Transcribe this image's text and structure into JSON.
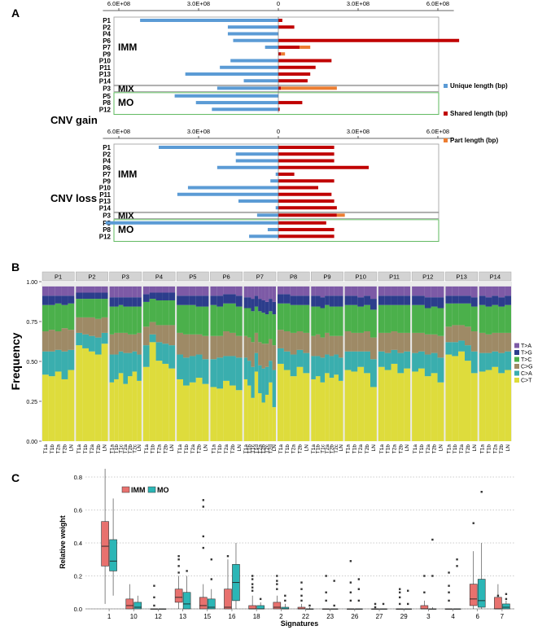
{
  "colors": {
    "unique": "#5b9bd5",
    "shared": "#c00000",
    "part": "#ed7d31",
    "imm_box": "#e8716e",
    "mo_box": "#2bb6b6",
    "mut": {
      "C>T": "#dedc3c",
      "C>A": "#3aaeae",
      "C>G": "#9e8a66",
      "T>C": "#4bb04b",
      "T>G": "#2c3d8c",
      "T>A": "#7d5aa6"
    }
  },
  "panels": {
    "a": "A",
    "b": "B",
    "c": "C"
  },
  "chart_data": [
    {
      "type": "bar",
      "id": "cnv-gain",
      "title": "CNV gain",
      "axis_ticks": [
        "6.0E+08",
        "3.0E+08",
        "0",
        "3.0E+08",
        "6.0E+08"
      ],
      "xlim": [
        -650000000.0,
        650000000.0
      ],
      "groups": {
        "imm": "IMM",
        "mix": "MIX",
        "mo": "MO"
      },
      "legend": [
        "Unique length (bp)",
        "Shared length (bp)",
        "Part length (bp)"
      ],
      "patients": [
        "P1",
        "P2",
        "P4",
        "P6",
        "P7",
        "P9",
        "P10",
        "P11",
        "P13",
        "P14",
        "P3",
        "P5",
        "P8",
        "P12"
      ],
      "unique": [
        520000000.0,
        190000000.0,
        190000000.0,
        170000000.0,
        50000000.0,
        0,
        180000000.0,
        220000000.0,
        350000000.0,
        130000000.0,
        230000000.0,
        390000000.0,
        310000000.0,
        250000000.0
      ],
      "shared": [
        15000000.0,
        60000000.0,
        0,
        680000000.0,
        80000000.0,
        10000000.0,
        200000000.0,
        140000000.0,
        120000000.0,
        110000000.0,
        10000000.0,
        0,
        90000000.0,
        5000000.0
      ],
      "part": [
        0,
        0,
        0,
        0,
        40000000.0,
        15000000.0,
        0,
        0,
        0,
        0,
        210000000.0,
        0,
        0,
        0
      ]
    },
    {
      "type": "bar",
      "id": "cnv-loss",
      "title": "CNV loss",
      "axis_ticks": [
        "6.0E+08",
        "3.0E+08",
        "0",
        "3.0E+08",
        "6.0E+08"
      ],
      "xlim": [
        -650000000.0,
        650000000.0
      ],
      "groups": {
        "imm": "IMM",
        "mix": "MIX",
        "mo": "MO"
      },
      "patients": [
        "P1",
        "P2",
        "P4",
        "P6",
        "P7",
        "P9",
        "P10",
        "P11",
        "P13",
        "P14",
        "P3",
        "P5",
        "P8",
        "P12"
      ],
      "unique": [
        450000000.0,
        160000000.0,
        160000000.0,
        230000000.0,
        10000000.0,
        30000000.0,
        340000000.0,
        380000000.0,
        150000000.0,
        10000000.0,
        80000000.0,
        650000000.0,
        40000000.0,
        110000000.0
      ],
      "shared": [
        210000000.0,
        210000000.0,
        210000000.0,
        340000000.0,
        60000000.0,
        210000000.0,
        150000000.0,
        200000000.0,
        210000000.0,
        220000000.0,
        220000000.0,
        180000000.0,
        210000000.0,
        210000000.0
      ],
      "part": [
        0,
        0,
        0,
        0,
        0,
        0,
        0,
        0,
        0,
        0,
        30000000.0,
        0,
        0,
        0
      ]
    },
    {
      "type": "bar",
      "id": "mutation-spectrum",
      "ylabel": "Frequency",
      "yticks": [
        "0.00",
        "0.25",
        "0.50",
        "0.75",
        "1.00"
      ],
      "legend": [
        "T>A",
        "T>G",
        "T>C",
        "C>G",
        "C>A",
        "C>T"
      ],
      "facets": [
        "P1",
        "P2",
        "P3",
        "P4",
        "P5",
        "P6",
        "P7",
        "P8",
        "P9",
        "P10",
        "P11",
        "P12",
        "P13",
        "P14"
      ],
      "samples": [
        [
          "T1a",
          "T1b",
          "T2a",
          "T2b",
          "LN"
        ],
        [
          "T1a",
          "T1b",
          "T2a",
          "T2b",
          "LN"
        ],
        [
          "T1a",
          "T1b",
          "T1c",
          "T2a",
          "T2b",
          "T2c",
          "LN"
        ],
        [
          "T1a",
          "T1b",
          "T2a",
          "T2b",
          "LN"
        ],
        [
          "T1a",
          "T1b",
          "T2a",
          "T2b",
          "LN"
        ],
        [
          "T1a",
          "T1b",
          "T2a",
          "T2b",
          "LN"
        ],
        [
          "T1a",
          "T1b",
          "T1c",
          "T1d",
          "T2a",
          "T2b",
          "T2c",
          "T2d",
          "LN"
        ],
        [
          "T1a",
          "T1b",
          "T2a",
          "T2b",
          "LN"
        ],
        [
          "T1a",
          "T1b",
          "T1c",
          "T2a",
          "T2b",
          "T2c",
          "LN"
        ],
        [
          "T1a",
          "T1b",
          "T2a",
          "T2b",
          "LN"
        ],
        [
          "T1a",
          "T1b",
          "T2a",
          "T2b",
          "LN"
        ],
        [
          "T1a",
          "T1b",
          "T2a",
          "T2b",
          "LN"
        ],
        [
          "T1a",
          "T1b",
          "T2a",
          "T2b",
          "LN"
        ],
        [
          "T1a",
          "T1b",
          "T2a",
          "T2b",
          "LN"
        ]
      ],
      "ct": [
        [
          0.43,
          0.42,
          0.45,
          0.4,
          0.46
        ],
        [
          0.62,
          0.6,
          0.58,
          0.56,
          0.63
        ],
        [
          0.38,
          0.4,
          0.44,
          0.37,
          0.42,
          0.45,
          0.39
        ],
        [
          0.48,
          0.64,
          0.52,
          0.5,
          0.47
        ],
        [
          0.4,
          0.36,
          0.38,
          0.41,
          0.37
        ],
        [
          0.35,
          0.34,
          0.39,
          0.36,
          0.33
        ],
        [
          0.4,
          0.36,
          0.28,
          0.45,
          0.31,
          0.25,
          0.3,
          0.38,
          0.22
        ],
        [
          0.5,
          0.46,
          0.42,
          0.48,
          0.44
        ],
        [
          0.4,
          0.42,
          0.38,
          0.44,
          0.41,
          0.43,
          0.39
        ],
        [
          0.46,
          0.45,
          0.48,
          0.44,
          0.35
        ],
        [
          0.48,
          0.46,
          0.5,
          0.44,
          0.47
        ],
        [
          0.45,
          0.47,
          0.42,
          0.44,
          0.38
        ],
        [
          0.56,
          0.55,
          0.58,
          0.52,
          0.44
        ],
        [
          0.45,
          0.46,
          0.48,
          0.44,
          0.46
        ]
      ],
      "ca": [
        [
          0.15,
          0.16,
          0.14,
          0.18,
          0.13
        ],
        [
          0.08,
          0.09,
          0.1,
          0.11,
          0.07
        ],
        [
          0.18,
          0.16,
          0.14,
          0.2,
          0.15,
          0.13,
          0.17
        ],
        [
          0.14,
          0.05,
          0.12,
          0.13,
          0.15
        ],
        [
          0.16,
          0.18,
          0.17,
          0.15,
          0.16
        ],
        [
          0.18,
          0.2,
          0.16,
          0.19,
          0.21
        ],
        [
          0.14,
          0.16,
          0.2,
          0.12,
          0.18,
          0.22,
          0.18,
          0.14,
          0.24
        ],
        [
          0.1,
          0.12,
          0.14,
          0.11,
          0.13
        ],
        [
          0.15,
          0.13,
          0.16,
          0.12,
          0.14,
          0.13,
          0.15
        ],
        [
          0.12,
          0.13,
          0.1,
          0.14,
          0.18
        ],
        [
          0.1,
          0.11,
          0.09,
          0.13,
          0.11
        ],
        [
          0.12,
          0.11,
          0.14,
          0.13,
          0.16
        ],
        [
          0.08,
          0.09,
          0.07,
          0.1,
          0.14
        ],
        [
          0.12,
          0.11,
          0.1,
          0.13,
          0.12
        ]
      ],
      "cg": [
        [
          0.13,
          0.14,
          0.12,
          0.15,
          0.13
        ],
        [
          0.1,
          0.11,
          0.12,
          0.12,
          0.1
        ],
        [
          0.13,
          0.14,
          0.12,
          0.13,
          0.12,
          0.11,
          0.14
        ],
        [
          0.12,
          0.08,
          0.11,
          0.12,
          0.13
        ],
        [
          0.14,
          0.15,
          0.14,
          0.13,
          0.15
        ],
        [
          0.15,
          0.14,
          0.16,
          0.15,
          0.14
        ],
        [
          0.14,
          0.15,
          0.16,
          0.13,
          0.15,
          0.16,
          0.15,
          0.14,
          0.16
        ],
        [
          0.12,
          0.13,
          0.14,
          0.12,
          0.13
        ],
        [
          0.13,
          0.14,
          0.13,
          0.14,
          0.13,
          0.12,
          0.14
        ],
        [
          0.13,
          0.12,
          0.12,
          0.13,
          0.14
        ],
        [
          0.12,
          0.13,
          0.12,
          0.13,
          0.12
        ],
        [
          0.13,
          0.12,
          0.13,
          0.12,
          0.14
        ],
        [
          0.1,
          0.11,
          0.1,
          0.12,
          0.13
        ],
        [
          0.13,
          0.12,
          0.12,
          0.13,
          0.12
        ]
      ],
      "tc": [
        [
          0.17,
          0.16,
          0.18,
          0.15,
          0.17
        ],
        [
          0.12,
          0.12,
          0.12,
          0.13,
          0.12
        ],
        [
          0.18,
          0.17,
          0.18,
          0.17,
          0.18,
          0.18,
          0.17
        ],
        [
          0.16,
          0.15,
          0.16,
          0.16,
          0.16
        ],
        [
          0.18,
          0.19,
          0.19,
          0.18,
          0.19
        ],
        [
          0.2,
          0.19,
          0.18,
          0.19,
          0.19
        ],
        [
          0.18,
          0.19,
          0.2,
          0.17,
          0.2,
          0.2,
          0.19,
          0.18,
          0.2
        ],
        [
          0.17,
          0.18,
          0.18,
          0.17,
          0.18
        ],
        [
          0.19,
          0.18,
          0.19,
          0.18,
          0.19,
          0.19,
          0.19
        ],
        [
          0.17,
          0.18,
          0.17,
          0.17,
          0.18
        ],
        [
          0.18,
          0.18,
          0.17,
          0.18,
          0.18
        ],
        [
          0.18,
          0.18,
          0.17,
          0.18,
          0.18
        ],
        [
          0.15,
          0.14,
          0.14,
          0.15,
          0.16
        ],
        [
          0.18,
          0.18,
          0.18,
          0.17,
          0.18
        ]
      ],
      "tg": [
        [
          0.06,
          0.06,
          0.05,
          0.06,
          0.05
        ],
        [
          0.04,
          0.04,
          0.04,
          0.04,
          0.04
        ],
        [
          0.06,
          0.06,
          0.05,
          0.06,
          0.06,
          0.06,
          0.06
        ],
        [
          0.05,
          0.04,
          0.05,
          0.05,
          0.05
        ],
        [
          0.06,
          0.06,
          0.06,
          0.07,
          0.07
        ],
        [
          0.06,
          0.07,
          0.06,
          0.06,
          0.07
        ],
        [
          0.07,
          0.07,
          0.08,
          0.07,
          0.08,
          0.08,
          0.08,
          0.08,
          0.08
        ],
        [
          0.06,
          0.06,
          0.06,
          0.06,
          0.06
        ],
        [
          0.07,
          0.07,
          0.07,
          0.06,
          0.07,
          0.07,
          0.07
        ],
        [
          0.06,
          0.06,
          0.06,
          0.06,
          0.07
        ],
        [
          0.06,
          0.06,
          0.06,
          0.06,
          0.06
        ],
        [
          0.06,
          0.06,
          0.07,
          0.06,
          0.07
        ],
        [
          0.05,
          0.05,
          0.05,
          0.05,
          0.06
        ],
        [
          0.06,
          0.06,
          0.06,
          0.06,
          0.06
        ]
      ]
    },
    {
      "type": "box",
      "id": "signatures",
      "ylabel": "Relative weight",
      "xlabel": "Signatures",
      "legend": [
        "IMM",
        "MO"
      ],
      "yticks": [
        "0.0",
        "0.2",
        "0.4",
        "0.6",
        "0.8"
      ],
      "ylim": [
        0,
        0.85
      ],
      "categories": [
        "1",
        "10",
        "12",
        "13",
        "15",
        "16",
        "18",
        "2",
        "22",
        "23",
        "26",
        "27",
        "29",
        "3",
        "4",
        "6",
        "7"
      ],
      "imm": [
        [
          0.03,
          0.26,
          0.38,
          0.53,
          0.85
        ],
        [
          0,
          0,
          0.02,
          0.06,
          0.15
        ],
        [
          0,
          0,
          0,
          0,
          0
        ],
        [
          0,
          0.04,
          0.07,
          0.12,
          0.2
        ],
        [
          0,
          0,
          0.02,
          0.07,
          0.15
        ],
        [
          0,
          0,
          0.01,
          0.12,
          0.3
        ],
        [
          0,
          0,
          0,
          0.02,
          0.08
        ],
        [
          0,
          0,
          0.01,
          0.04,
          0.08
        ],
        [
          0,
          0,
          0,
          0.01,
          0.03
        ],
        [
          0,
          0,
          0,
          0,
          0
        ],
        [
          0,
          0,
          0,
          0,
          0
        ],
        [
          0,
          0,
          0,
          0,
          0
        ],
        [
          0,
          0,
          0,
          0,
          0
        ],
        [
          0,
          0,
          0,
          0.02,
          0.05
        ],
        [
          0,
          0,
          0,
          0,
          0
        ],
        [
          0,
          0.02,
          0.06,
          0.15,
          0.35
        ],
        [
          0,
          0,
          0,
          0.07,
          0.15
        ]
      ],
      "mo": [
        [
          0.08,
          0.23,
          0.29,
          0.42,
          0.67
        ],
        [
          0,
          0,
          0.01,
          0.04,
          0.08
        ],
        [
          0,
          0,
          0,
          0,
          0
        ],
        [
          0,
          0,
          0.03,
          0.1,
          0.2
        ],
        [
          0,
          0,
          0.01,
          0.06,
          0.12
        ],
        [
          0,
          0.05,
          0.16,
          0.27,
          0.4
        ],
        [
          0,
          0,
          0,
          0.02,
          0.04
        ],
        [
          0,
          0,
          0,
          0.01,
          0.03
        ],
        [
          0,
          0,
          0,
          0,
          0.01
        ],
        [
          0,
          0,
          0,
          0,
          0
        ],
        [
          0,
          0,
          0,
          0,
          0
        ],
        [
          0,
          0,
          0,
          0,
          0
        ],
        [
          0,
          0,
          0,
          0,
          0
        ],
        [
          0,
          0,
          0,
          0,
          0.01
        ],
        [
          0,
          0,
          0,
          0,
          0
        ],
        [
          0,
          0.01,
          0.05,
          0.18,
          0.4
        ],
        [
          0,
          0,
          0.01,
          0.03,
          0.05
        ]
      ],
      "imm_out": [
        [],
        [],
        [
          0.02,
          0.07,
          0.14
        ],
        [
          0.22,
          0.26,
          0.3,
          0.32
        ],
        [
          0.37,
          0.44,
          0.62,
          0.66
        ],
        [
          0.32
        ],
        [
          0.11,
          0.13,
          0.15,
          0.18,
          0.2
        ],
        [
          0.12,
          0.15,
          0.17,
          0.2
        ],
        [
          0.05,
          0.08,
          0.12,
          0.16
        ],
        [
          0.05,
          0.1,
          0.2
        ],
        [
          0.05,
          0.1,
          0.16,
          0.29
        ],
        [
          0.01,
          0.03
        ],
        [
          0.03,
          0.07,
          0.1,
          0.12
        ],
        [
          0.1,
          0.2
        ],
        [
          0.05,
          0.1,
          0.14,
          0.22
        ],
        [
          0.52
        ],
        [
          0.08
        ]
      ],
      "mo_out": [
        [],
        [],
        [],
        [
          0.23
        ],
        [
          0.18,
          0.3
        ],
        [],
        [
          0.06
        ],
        [
          0.05,
          0.08
        ],
        [
          0.02
        ],
        [
          0.02,
          0.17
        ],
        [
          0.05,
          0.12,
          0.18
        ],
        [
          0.03
        ],
        [
          0.03,
          0.11
        ],
        [
          0.42,
          0.2
        ],
        [
          0.26,
          0.3
        ],
        [
          0.71
        ],
        [
          0.06,
          0.09
        ]
      ]
    }
  ]
}
